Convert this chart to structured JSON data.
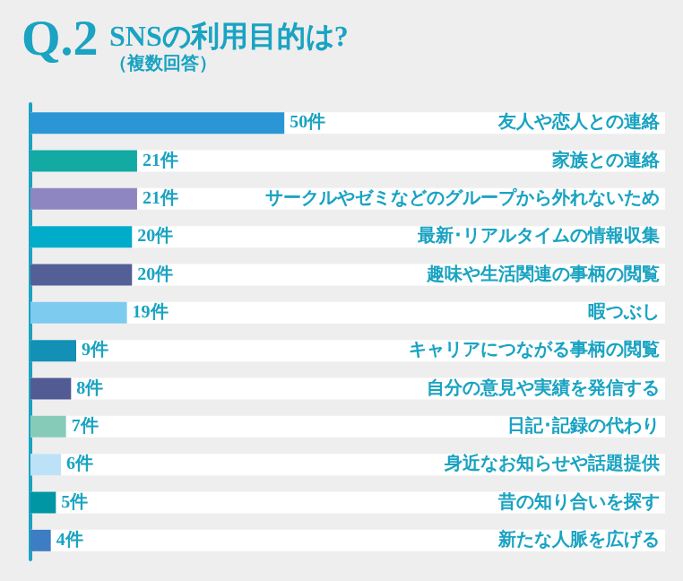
{
  "chart_data": {
    "type": "bar",
    "orientation": "horizontal",
    "title": "SNSの利用目的は?",
    "subtitle": "（複数回答）",
    "annotations": [
      "Q.2"
    ],
    "categories": [
      "友人や恋人との連絡",
      "家族との連絡",
      "サークルやゼミなどのグループから外れないため",
      "最新･リアルタイムの情報収集",
      "趣味や生活関連の事柄の閲覧",
      "暇つぶし",
      "キャリアにつながる事柄の閲覧",
      "自分の意見や実績を発信する",
      "日記･記録の代わり",
      "身近なお知らせや話題提供",
      "昔の知り合いを探す",
      "新たな人脈を広げる"
    ],
    "values": [
      50,
      21,
      21,
      20,
      20,
      19,
      9,
      8,
      7,
      6,
      5,
      4
    ],
    "value_labels": [
      "50件",
      "21件",
      "21件",
      "20件",
      "20件",
      "19件",
      "9件",
      "8件",
      "7件",
      "6件",
      "5件",
      "4件"
    ],
    "colors": [
      "#2a96d6",
      "#12aaa3",
      "#8e86c0",
      "#00acc9",
      "#535f96",
      "#7dcbee",
      "#1390b5",
      "#525b94",
      "#86cbb8",
      "#bde2f7",
      "#0096a3",
      "#3c7dc4"
    ],
    "tick_labels": "y"
  }
}
